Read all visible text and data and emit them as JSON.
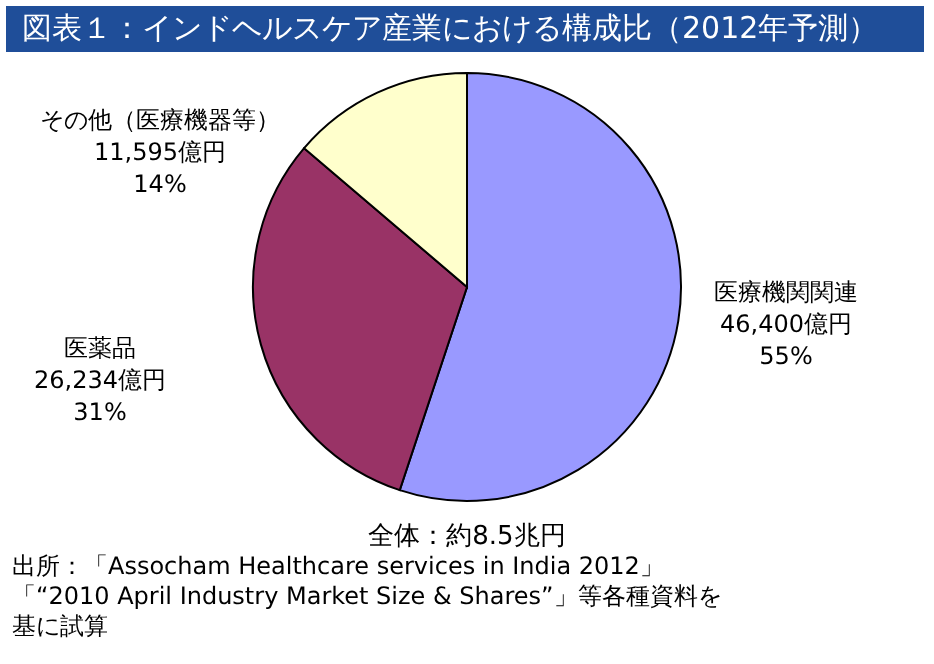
{
  "chart_data": {
    "type": "pie",
    "title": "図表１：インドヘルスケア産業における構成比（2012年予測）",
    "categories": [
      "医療機関関連",
      "医薬品",
      "その他（医療機器等）"
    ],
    "values": [
      46400,
      26234,
      11595
    ],
    "colors": [
      "#9999ff",
      "#993366",
      "#ffffcc"
    ],
    "value_labels": [
      "46,400億円\n55%",
      "26,234億円\n31%",
      "11,595億円\n14%"
    ],
    "annotations": [
      "全体：約8.5兆円",
      "出所：「Assocham Healthcare services in India 2012」",
      "「“2010 April Industry Market Size & Shares”」等各種資料を",
      "基に試算"
    ]
  }
}
